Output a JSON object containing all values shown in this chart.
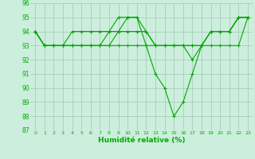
{
  "x": [
    0,
    1,
    2,
    3,
    4,
    5,
    6,
    7,
    8,
    9,
    10,
    11,
    12,
    13,
    14,
    15,
    16,
    17,
    18,
    19,
    20,
    21,
    22,
    23
  ],
  "series1": [
    94,
    93,
    93,
    93,
    94,
    94,
    94,
    94,
    94,
    95,
    95,
    95,
    93,
    91,
    90,
    88,
    89,
    91,
    93,
    94,
    94,
    94,
    95,
    95
  ],
  "series2": [
    94,
    93,
    93,
    93,
    93,
    93,
    93,
    93,
    93,
    93,
    93,
    93,
    93,
    93,
    93,
    93,
    93,
    93,
    93,
    93,
    93,
    93,
    93,
    95
  ],
  "series3": [
    94,
    93,
    93,
    93,
    93,
    93,
    93,
    93,
    93,
    94,
    94,
    94,
    94,
    93,
    93,
    93,
    93,
    93,
    93,
    94,
    94,
    94,
    95,
    95
  ],
  "series4": [
    94,
    93,
    93,
    93,
    93,
    93,
    93,
    93,
    94,
    94,
    95,
    95,
    94,
    93,
    93,
    93,
    93,
    92,
    93,
    94,
    94,
    94,
    95,
    95
  ],
  "line_color": "#00aa00",
  "bg_color": "#cceedd",
  "grid_color": "#aaccbb",
  "xlabel": "Humidité relative (%)",
  "ylim": [
    87,
    96
  ],
  "yticks": [
    87,
    88,
    89,
    90,
    91,
    92,
    93,
    94,
    95,
    96
  ],
  "xticks": [
    0,
    1,
    2,
    3,
    4,
    5,
    6,
    7,
    8,
    9,
    10,
    11,
    12,
    13,
    14,
    15,
    16,
    17,
    18,
    19,
    20,
    21,
    22,
    23
  ],
  "marker": "+",
  "marker_size": 3,
  "linewidth": 0.8
}
